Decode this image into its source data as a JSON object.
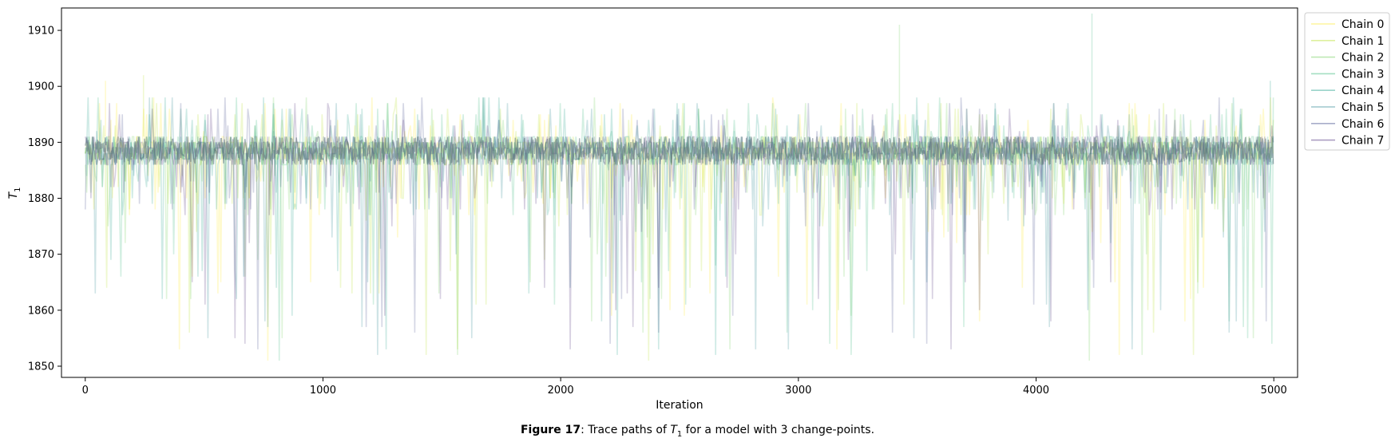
{
  "chart_data": {
    "type": "line",
    "title": "",
    "xlabel": "Iteration",
    "ylabel_var": "T",
    "ylabel_sub": "1",
    "xlim": [
      -100,
      5100
    ],
    "ylim": [
      1848,
      1914
    ],
    "x_ticks": [
      0,
      1000,
      2000,
      3000,
      4000,
      5000
    ],
    "y_ticks": [
      1850,
      1860,
      1870,
      1880,
      1890,
      1900,
      1910
    ],
    "n_iterations": 5000,
    "central_band": [
      1886,
      1891
    ],
    "sample_range": [
      1851,
      1902
    ],
    "legend_position": "outside-top-right",
    "series": [
      {
        "name": "Chain 0",
        "color": "#fde725"
      },
      {
        "name": "Chain 1",
        "color": "#b5de2b"
      },
      {
        "name": "Chain 2",
        "color": "#6ece58"
      },
      {
        "name": "Chain 3",
        "color": "#35b779"
      },
      {
        "name": "Chain 4",
        "color": "#1f9e89"
      },
      {
        "name": "Chain 5",
        "color": "#26828e"
      },
      {
        "name": "Chain 6",
        "color": "#3e4989"
      },
      {
        "name": "Chain 7",
        "color": "#482878"
      }
    ],
    "spikes": [
      {
        "x": 85,
        "y": 1901
      },
      {
        "x": 245,
        "y": 1902
      },
      {
        "x": 3425,
        "y": 1911
      },
      {
        "x": 4235,
        "y": 1913
      },
      {
        "x": 4985,
        "y": 1901
      }
    ]
  },
  "caption": {
    "label": "Figure 17",
    "text_before": ": Trace paths of ",
    "var": "T",
    "sub": "1",
    "text_after": " for a model with 3 change-points."
  }
}
